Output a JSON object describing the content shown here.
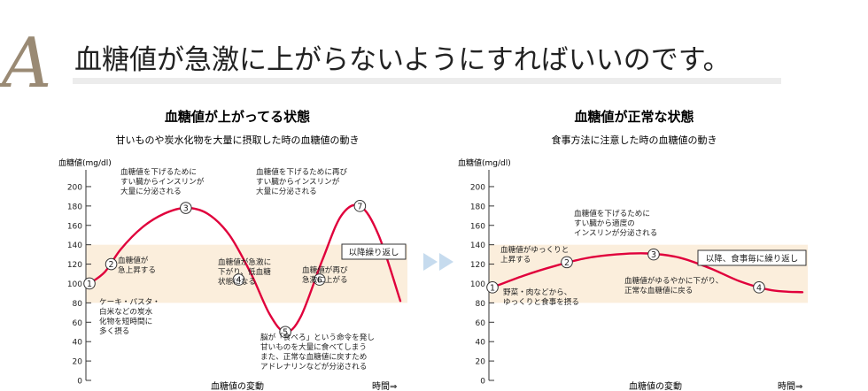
{
  "header": {
    "letter": "A",
    "headline": "血糖値が急激に上がらないようにすればいいのです。"
  },
  "colors": {
    "curve": "#e0003c",
    "band": "#fbeedc",
    "axis": "#333333",
    "arrow": "#c6dbee",
    "rule": "#e8e8e8"
  },
  "icons": {
    "next_arrow": "double-chevron-right-icon"
  },
  "chart_data": [
    {
      "type": "line",
      "title": "血糖値が上がってる状態",
      "subtitle": "甘いものや炭水化物を大量に摂取した時の血糖値の動き",
      "ylabel": "血糖値(mg/dl)",
      "xlabel": "血糖値の変動",
      "time_label": "時間⇒",
      "ylim": [
        0,
        210
      ],
      "yticks": [
        0,
        20,
        40,
        60,
        80,
        100,
        120,
        140,
        160,
        180,
        200
      ],
      "band": [
        80,
        140
      ],
      "grid": false,
      "legend": "none",
      "x_range": [
        0,
        100
      ],
      "points": [
        {
          "x": 0,
          "y": 100
        },
        {
          "x": 5,
          "y": 112
        },
        {
          "x": 10,
          "y": 135
        },
        {
          "x": 17,
          "y": 158
        },
        {
          "x": 24,
          "y": 172
        },
        {
          "x": 31,
          "y": 178
        },
        {
          "x": 38,
          "y": 172
        },
        {
          "x": 45,
          "y": 150
        },
        {
          "x": 52,
          "y": 110
        },
        {
          "x": 58,
          "y": 68
        },
        {
          "x": 63,
          "y": 50
        },
        {
          "x": 68,
          "y": 66
        },
        {
          "x": 75,
          "y": 125
        },
        {
          "x": 81,
          "y": 170
        },
        {
          "x": 87,
          "y": 180
        },
        {
          "x": 93,
          "y": 150
        },
        {
          "x": 100,
          "y": 82
        }
      ],
      "markers": [
        {
          "num": "1",
          "x": 0,
          "y": 100
        },
        {
          "num": "2",
          "x": 7,
          "y": 120
        },
        {
          "num": "3",
          "x": 31,
          "y": 178
        },
        {
          "num": "4",
          "x": 48,
          "y": 104
        },
        {
          "num": "5",
          "x": 63,
          "y": 50
        },
        {
          "num": "6",
          "x": 74,
          "y": 104
        },
        {
          "num": "7",
          "x": 87,
          "y": 180
        }
      ],
      "annotations": [
        {
          "id": "a1",
          "lines": [
            "ケーキ・パスタ・",
            "白米などの炭水",
            "化物を短時間に",
            "多く摂る"
          ]
        },
        {
          "id": "a2",
          "lines": [
            "血糖値が",
            "急上昇する"
          ]
        },
        {
          "id": "a3",
          "lines": [
            "血糖値を下げるために",
            "すい臓からインスリンが",
            "大量に分泌される"
          ]
        },
        {
          "id": "a4",
          "lines": [
            "血糖値が急激に",
            "下がり、低血糖",
            "状態になる"
          ]
        },
        {
          "id": "a5",
          "lines": [
            "脳が「食べろ」という命令を発し",
            "甘いものを大量に食べてしまう",
            "また、正常な血糖値に戻すため",
            "アドレナリンなどが分泌される"
          ]
        },
        {
          "id": "a6",
          "lines": [
            "血糖値が再び",
            "急激に上がる"
          ]
        },
        {
          "id": "a7",
          "lines": [
            "血糖値を下げるために再び",
            "すい臓からインスリンが",
            "大量に分泌される"
          ]
        }
      ],
      "boxed_label": "以降繰り返し"
    },
    {
      "type": "line",
      "title": "血糖値が正常な状態",
      "subtitle": "食事方法に注意した時の血糖値の動き",
      "ylabel": "血糖値(mg/dl)",
      "xlabel": "血糖値の変動",
      "time_label": "時間⇒",
      "ylim": [
        0,
        210
      ],
      "yticks": [
        0,
        20,
        40,
        60,
        80,
        100,
        120,
        140,
        160,
        180,
        200
      ],
      "band": [
        80,
        140
      ],
      "grid": false,
      "legend": "none",
      "x_range": [
        0,
        100
      ],
      "points": [
        {
          "x": 0,
          "y": 96
        },
        {
          "x": 10,
          "y": 108
        },
        {
          "x": 20,
          "y": 118
        },
        {
          "x": 30,
          "y": 126
        },
        {
          "x": 40,
          "y": 130
        },
        {
          "x": 50,
          "y": 131
        },
        {
          "x": 60,
          "y": 127
        },
        {
          "x": 70,
          "y": 116
        },
        {
          "x": 80,
          "y": 102
        },
        {
          "x": 90,
          "y": 93
        },
        {
          "x": 100,
          "y": 91
        }
      ],
      "markers": [
        {
          "num": "1",
          "x": 0,
          "y": 96
        },
        {
          "num": "2",
          "x": 24,
          "y": 122
        },
        {
          "num": "3",
          "x": 52,
          "y": 130
        },
        {
          "num": "4",
          "x": 86,
          "y": 96
        }
      ],
      "annotations": [
        {
          "id": "b1",
          "lines": [
            "野菜・肉などから、",
            "ゆっくりと食事を摂る"
          ]
        },
        {
          "id": "b2",
          "lines": [
            "血糖値がゆっくりと",
            "上昇する"
          ]
        },
        {
          "id": "b3",
          "lines": [
            "血糖値を下げるために",
            "すい臓から適度の",
            "インスリンが分泌される"
          ]
        },
        {
          "id": "b4",
          "lines": [
            "血糖値がゆるやかに下がり、",
            "正常な血糖値に戻る"
          ]
        }
      ],
      "boxed_label": "以降、食事毎に繰り返し"
    }
  ]
}
